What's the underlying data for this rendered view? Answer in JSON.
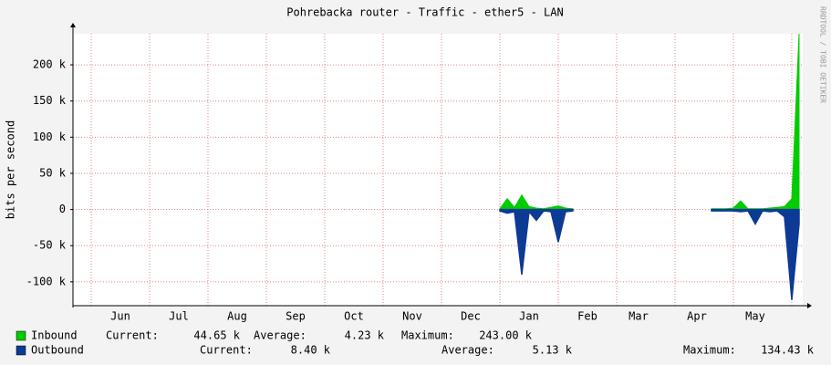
{
  "chart_data": {
    "type": "area",
    "title": "Pohrebacka router - Traffic - ether5 - LAN",
    "y_label": "bits per second",
    "credit": "RRDTOOL / TOBI OETIKER",
    "categories": [
      null,
      null,
      null,
      null,
      null,
      null,
      "Jun",
      null,
      null,
      null,
      null,
      null,
      null,
      null,
      "Jul",
      null,
      null,
      null,
      null,
      null,
      null,
      null,
      "Aug",
      null,
      null,
      null,
      null,
      null,
      null,
      null,
      "Sep",
      null,
      null,
      null,
      null,
      null,
      null,
      null,
      "Oct",
      null,
      null,
      null,
      null,
      null,
      null,
      null,
      "Nov",
      null,
      null,
      null,
      null,
      null,
      null,
      null,
      "Dec",
      null,
      null,
      null,
      null,
      null,
      null,
      null,
      "Jan",
      null,
      null,
      null,
      null,
      null,
      null,
      null,
      "Feb",
      null,
      null,
      null,
      null,
      null,
      null,
      "Mar",
      null,
      null,
      null,
      null,
      null,
      null,
      null,
      "Apr",
      null,
      null,
      null,
      null,
      null,
      null,
      null,
      "May",
      null,
      null,
      null,
      null,
      null,
      null
    ],
    "series": [
      {
        "name": "Inbound",
        "color": "#00cc00",
        "current": "44.65 k",
        "average": "4.23 k",
        "maximum": "243.00 k",
        "values": [
          null,
          null,
          null,
          null,
          null,
          null,
          null,
          null,
          null,
          null,
          null,
          null,
          null,
          null,
          null,
          null,
          null,
          null,
          null,
          null,
          null,
          null,
          null,
          null,
          null,
          null,
          null,
          null,
          null,
          null,
          null,
          null,
          null,
          null,
          null,
          null,
          null,
          null,
          null,
          null,
          null,
          null,
          null,
          null,
          null,
          null,
          null,
          null,
          null,
          null,
          null,
          null,
          null,
          null,
          null,
          null,
          null,
          null,
          1000,
          15000,
          3000,
          20000,
          4000,
          2000,
          1000,
          3000,
          5000,
          2000,
          1000,
          null,
          null,
          null,
          null,
          null,
          null,
          null,
          null,
          null,
          null,
          null,
          null,
          null,
          null,
          null,
          null,
          null,
          null,
          1000,
          1000,
          1000,
          2000,
          12000,
          1000,
          1000,
          1000,
          2000,
          3000,
          4000,
          15000,
          243000
        ]
      },
      {
        "name": "Outbound",
        "color": "#0d3a94",
        "current": "8.40 k",
        "average": "5.13 k",
        "maximum": "134.43 k",
        "values": [
          null,
          null,
          null,
          null,
          null,
          null,
          null,
          null,
          null,
          null,
          null,
          null,
          null,
          null,
          null,
          null,
          null,
          null,
          null,
          null,
          null,
          null,
          null,
          null,
          null,
          null,
          null,
          null,
          null,
          null,
          null,
          null,
          null,
          null,
          null,
          null,
          null,
          null,
          null,
          null,
          null,
          null,
          null,
          null,
          null,
          null,
          null,
          null,
          null,
          null,
          null,
          null,
          null,
          null,
          null,
          null,
          null,
          null,
          -2000,
          -5000,
          -3000,
          -90000,
          -3000,
          -15000,
          -2000,
          -3000,
          -45000,
          -3000,
          -2000,
          null,
          null,
          null,
          null,
          null,
          null,
          null,
          null,
          null,
          null,
          null,
          null,
          null,
          null,
          null,
          null,
          null,
          null,
          -2000,
          -2000,
          -2000,
          -2000,
          -3000,
          -2000,
          -20000,
          -2000,
          -3000,
          -2000,
          -10000,
          -125000,
          -20000
        ]
      }
    ],
    "stat_labels": [
      "Current:",
      "Average:",
      "Maximum:"
    ],
    "ylim": [
      -133000,
      243000
    ],
    "yticks": [
      {
        "value": -100000,
        "label": "-100 k"
      },
      {
        "value": -50000,
        "label": "-50 k"
      },
      0,
      {
        "value": 50000,
        "label": "50 k"
      },
      {
        "value": 100000,
        "label": "100 k"
      },
      {
        "value": 150000,
        "label": "150 k"
      },
      {
        "value": 200000,
        "label": "200 k"
      }
    ],
    "grid": true
  }
}
